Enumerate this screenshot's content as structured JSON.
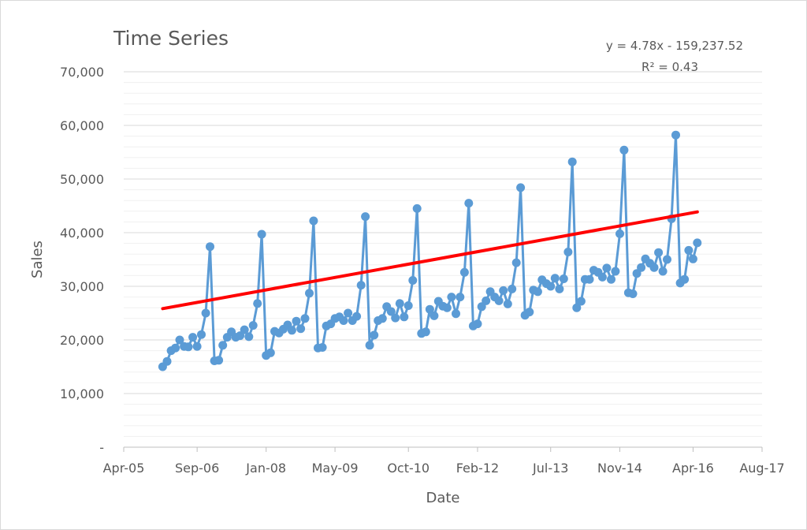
{
  "chart_data": {
    "type": "line",
    "title": "Time Series",
    "xlabel": "Date",
    "ylabel": "Sales",
    "trendline": {
      "equation": "y = 4.78x - 159,237.52",
      "r_squared": "R² = 0.43",
      "slope_per_day": 4.78,
      "intercept": -159237.52,
      "color": "#ff0000"
    },
    "line_color": "#5b9bd5",
    "grid": true,
    "ylim": [
      0,
      70000
    ],
    "y_ticks": [
      0,
      10000,
      20000,
      30000,
      40000,
      50000,
      60000,
      70000
    ],
    "y_tick_labels": [
      "-",
      "10,000",
      "20,000",
      "30,000",
      "40,000",
      "50,000",
      "60,000",
      "70,000"
    ],
    "xlim": [
      "2005-04-01",
      "2017-08-01"
    ],
    "x_ticks": [
      "2005-04-01",
      "2006-09-01",
      "2008-01-01",
      "2009-05-01",
      "2010-10-01",
      "2012-02-01",
      "2013-07-01",
      "2014-11-01",
      "2016-04-01",
      "2017-08-01"
    ],
    "x_tick_labels": [
      "Apr-05",
      "Sep-06",
      "Jan-08",
      "May-09",
      "Oct-10",
      "Feb-12",
      "Jul-13",
      "Nov-14",
      "Apr-16",
      "Aug-17"
    ],
    "series": [
      {
        "x": [
          "2006-01-01",
          "2006-02-01",
          "2006-03-01",
          "2006-04-01",
          "2006-05-01",
          "2006-06-01",
          "2006-07-01",
          "2006-08-01",
          "2006-09-01",
          "2006-10-01",
          "2006-11-01",
          "2006-12-01",
          "2007-01-01",
          "2007-02-01",
          "2007-03-01",
          "2007-04-01",
          "2007-05-01",
          "2007-06-01",
          "2007-07-01",
          "2007-08-01",
          "2007-09-01",
          "2007-10-01",
          "2007-11-01",
          "2007-12-01",
          "2008-01-01",
          "2008-02-01",
          "2008-03-01",
          "2008-04-01",
          "2008-05-01",
          "2008-06-01",
          "2008-07-01",
          "2008-08-01",
          "2008-09-01",
          "2008-10-01",
          "2008-11-01",
          "2008-12-01",
          "2009-01-01",
          "2009-02-01",
          "2009-03-01",
          "2009-04-01",
          "2009-05-01",
          "2009-06-01",
          "2009-07-01",
          "2009-08-01",
          "2009-09-01",
          "2009-10-01",
          "2009-11-01",
          "2009-12-01",
          "2010-01-01",
          "2010-02-01",
          "2010-03-01",
          "2010-04-01",
          "2010-05-01",
          "2010-06-01",
          "2010-07-01",
          "2010-08-01",
          "2010-09-01",
          "2010-10-01",
          "2010-11-01",
          "2010-12-01",
          "2011-01-01",
          "2011-02-01",
          "2011-03-01",
          "2011-04-01",
          "2011-05-01",
          "2011-06-01",
          "2011-07-01",
          "2011-08-01",
          "2011-09-01",
          "2011-10-01",
          "2011-11-01",
          "2011-12-01",
          "2012-01-01",
          "2012-02-01",
          "2012-03-01",
          "2012-04-01",
          "2012-05-01",
          "2012-06-01",
          "2012-07-01",
          "2012-08-01",
          "2012-09-01",
          "2012-10-01",
          "2012-11-01",
          "2012-12-01",
          "2013-01-01",
          "2013-02-01",
          "2013-03-01",
          "2013-04-01",
          "2013-05-01",
          "2013-06-01",
          "2013-07-01",
          "2013-08-01",
          "2013-09-01",
          "2013-10-01",
          "2013-11-01",
          "2013-12-01",
          "2014-01-01",
          "2014-02-01",
          "2014-03-01",
          "2014-04-01",
          "2014-05-01",
          "2014-06-01",
          "2014-07-01",
          "2014-08-01",
          "2014-09-01",
          "2014-10-01",
          "2014-11-01",
          "2014-12-01",
          "2015-01-01",
          "2015-02-01",
          "2015-03-01",
          "2015-04-01",
          "2015-05-01",
          "2015-06-01",
          "2015-07-01",
          "2015-08-01",
          "2015-09-01",
          "2015-10-01",
          "2015-11-01",
          "2015-12-01",
          "2016-01-01",
          "2016-02-01",
          "2016-03-01",
          "2016-04-01",
          "2016-05-01"
        ],
        "values": [
          15000,
          16000,
          18000,
          18500,
          20000,
          18800,
          18700,
          20500,
          18800,
          21000,
          25000,
          37400,
          16100,
          16200,
          19000,
          20500,
          21500,
          20500,
          20800,
          21900,
          20600,
          22700,
          26800,
          39700,
          17100,
          17600,
          21600,
          21300,
          22000,
          22800,
          21800,
          23500,
          22100,
          24000,
          28700,
          42200,
          18500,
          18600,
          22600,
          23000,
          24000,
          24300,
          23600,
          25000,
          23600,
          24400,
          30200,
          43000,
          19000,
          20900,
          23600,
          24000,
          26200,
          25300,
          24100,
          26800,
          24300,
          26400,
          31100,
          44500,
          21200,
          21500,
          25700,
          24500,
          27200,
          26300,
          26000,
          28000,
          24900,
          28000,
          32600,
          45500,
          22600,
          23000,
          26200,
          27300,
          29000,
          28000,
          27300,
          29200,
          26700,
          29500,
          34400,
          48400,
          24600,
          25200,
          29300,
          29000,
          31200,
          30500,
          30000,
          31500,
          29500,
          31400,
          36400,
          53200,
          26000,
          27200,
          31300,
          31300,
          33000,
          32600,
          31700,
          33400,
          31300,
          32800,
          39800,
          55400,
          28800,
          28600,
          32400,
          33500,
          35100,
          34300,
          33500,
          36300,
          32800,
          35000,
          42600,
          58200,
          30600,
          31300,
          36700,
          35100,
          38100
        ]
      }
    ]
  }
}
